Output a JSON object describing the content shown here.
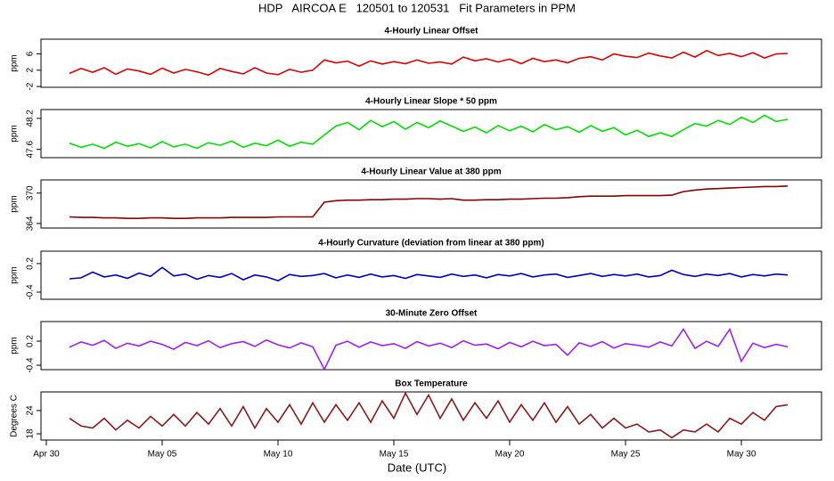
{
  "chart_data": {
    "type": "line",
    "title": "HDP   AIRCOA E   120501 to 120531   Fit Parameters in PPM",
    "xlabel": "Date (UTC)",
    "xlim": [
      -0.23,
      33.46
    ],
    "xticks": [
      {
        "value": 0,
        "label": "Apr 30"
      },
      {
        "value": 5,
        "label": "May 05"
      },
      {
        "value": 10,
        "label": "May 10"
      },
      {
        "value": 15,
        "label": "May 15"
      },
      {
        "value": 20,
        "label": "May 20"
      },
      {
        "value": 25,
        "label": "May 25"
      },
      {
        "value": 30,
        "label": "May 30"
      }
    ],
    "x": [
      1,
      1.5,
      2,
      2.5,
      3,
      3.5,
      4,
      4.5,
      5,
      5.5,
      6,
      6.5,
      7,
      7.5,
      8,
      8.5,
      9,
      9.5,
      10,
      10.5,
      11,
      11.5,
      12,
      12.5,
      13,
      13.5,
      14,
      14.5,
      15,
      15.5,
      16,
      16.5,
      17,
      17.5,
      18,
      18.5,
      19,
      19.5,
      20,
      20.5,
      21,
      21.5,
      22,
      22.5,
      23,
      23.5,
      24,
      24.5,
      25,
      25.5,
      26,
      26.5,
      27,
      27.5,
      28,
      28.5,
      29,
      29.5,
      30,
      30.5,
      31,
      31.5,
      32
    ],
    "panels": [
      {
        "title": "4-Hourly Linear Offset",
        "ylabel": "ppm",
        "color": "#e00000",
        "ylim": [
          -2.2,
          9.6
        ],
        "yticks": [
          -2,
          2,
          6
        ],
        "values": [
          1.2,
          2.4,
          1.5,
          2.6,
          1.0,
          2.3,
          1.8,
          1.0,
          2.5,
          1.3,
          2.2,
          1.6,
          0.8,
          2.4,
          1.7,
          1.1,
          2.6,
          1.3,
          0.9,
          2.2,
          1.5,
          2.0,
          4.5,
          3.8,
          4.2,
          3.0,
          4.3,
          3.5,
          4.1,
          3.6,
          4.5,
          3.7,
          4.0,
          3.5,
          5.2,
          4.3,
          4.8,
          4.0,
          4.7,
          3.6,
          4.9,
          4.1,
          4.5,
          3.8,
          4.9,
          5.3,
          4.5,
          6.0,
          5.4,
          5.1,
          6.2,
          5.5,
          5.0,
          6.4,
          5.2,
          6.8,
          5.6,
          6.1,
          5.3,
          6.3,
          5.0,
          6.0,
          6.1
        ]
      },
      {
        "title": "4-Hourly Linear Slope * 50 ppm",
        "ylabel": "ppm",
        "color": "#00e000",
        "ylim": [
          47.44,
          48.37
        ],
        "yticks": [
          47.6,
          48.2
        ],
        "values": [
          47.72,
          47.64,
          47.7,
          47.62,
          47.74,
          47.66,
          47.71,
          47.63,
          47.75,
          47.65,
          47.7,
          47.62,
          47.73,
          47.68,
          47.76,
          47.64,
          47.72,
          47.67,
          47.78,
          47.66,
          47.74,
          47.7,
          47.88,
          48.05,
          48.12,
          47.98,
          48.16,
          48.04,
          48.14,
          47.99,
          48.12,
          48.02,
          48.15,
          48.05,
          47.95,
          48.03,
          47.92,
          48.06,
          47.96,
          48.05,
          47.94,
          48.08,
          47.98,
          48.04,
          47.93,
          48.06,
          47.95,
          48.02,
          47.88,
          47.97,
          47.85,
          47.92,
          47.85,
          47.98,
          48.1,
          48.05,
          48.16,
          48.08,
          48.22,
          48.12,
          48.26,
          48.14,
          48.18
        ]
      },
      {
        "title": "4-Hourly Linear Value at 380 ppm",
        "ylabel": "ppm",
        "color": "#8b0000",
        "ylim": [
          363.1,
          372.6
        ],
        "yticks": [
          364,
          370
        ],
        "values": [
          365.3,
          365.2,
          365.2,
          365.1,
          365.1,
          365.0,
          365.0,
          365.1,
          365.1,
          365.0,
          365.0,
          365.1,
          365.1,
          365.1,
          365.2,
          365.2,
          365.2,
          365.2,
          365.3,
          365.3,
          365.3,
          365.3,
          368.2,
          368.5,
          368.6,
          368.6,
          368.7,
          368.7,
          368.8,
          368.8,
          368.9,
          368.9,
          368.8,
          368.9,
          368.6,
          368.6,
          368.7,
          368.7,
          368.8,
          368.8,
          368.9,
          369.0,
          369.0,
          369.1,
          369.3,
          369.4,
          369.4,
          369.4,
          369.5,
          369.5,
          369.5,
          369.5,
          369.6,
          370.3,
          370.6,
          370.8,
          370.9,
          371.0,
          371.1,
          371.2,
          371.3,
          371.3,
          371.4
        ]
      },
      {
        "title": "4-Hourly Curvature (deviation from linear at 380 ppm)",
        "ylabel": "ppm",
        "color": "#0000c0",
        "ylim": [
          -0.55,
          0.46
        ],
        "yticks": [
          -0.4,
          0.2
        ],
        "values": [
          -0.12,
          -0.1,
          0.02,
          -0.08,
          -0.04,
          -0.11,
          0.0,
          -0.07,
          0.12,
          -0.06,
          -0.02,
          -0.13,
          -0.05,
          -0.09,
          -0.01,
          -0.14,
          -0.04,
          -0.08,
          -0.16,
          -0.03,
          -0.07,
          -0.05,
          -0.01,
          -0.1,
          -0.04,
          -0.09,
          -0.02,
          -0.08,
          -0.05,
          -0.11,
          -0.03,
          -0.06,
          -0.09,
          -0.02,
          -0.07,
          -0.04,
          -0.1,
          -0.03,
          -0.06,
          -0.01,
          -0.08,
          -0.04,
          -0.02,
          -0.09,
          -0.05,
          -0.01,
          -0.07,
          -0.03,
          -0.06,
          -0.02,
          -0.08,
          -0.05,
          0.06,
          -0.03,
          -0.07,
          -0.02,
          -0.05,
          -0.01,
          -0.08,
          -0.03,
          -0.06,
          -0.02,
          -0.04
        ]
      },
      {
        "title": "30-Minute Zero Offset",
        "ylabel": "ppm",
        "color": "#a020f0",
        "ylim": [
          -0.51,
          0.69
        ],
        "yticks": [
          -0.4,
          0.2
        ],
        "values": [
          0.05,
          0.18,
          0.1,
          0.22,
          0.02,
          0.15,
          0.08,
          0.2,
          0.12,
          0.0,
          0.17,
          0.09,
          0.21,
          0.04,
          0.14,
          0.19,
          0.07,
          0.23,
          0.11,
          0.03,
          0.16,
          0.06,
          -0.5,
          0.1,
          0.2,
          0.05,
          0.18,
          0.09,
          0.14,
          0.02,
          0.19,
          0.08,
          0.15,
          0.04,
          0.21,
          0.1,
          0.13,
          0.01,
          0.17,
          0.06,
          0.2,
          0.09,
          0.12,
          -0.15,
          0.16,
          0.07,
          0.19,
          0.03,
          0.14,
          0.1,
          0.05,
          0.18,
          0.08,
          0.5,
          0.02,
          0.2,
          0.07,
          0.5,
          -0.3,
          0.15,
          0.04,
          0.12,
          0.06
        ]
      },
      {
        "title": "Box Temperature",
        "ylabel": "Degrees C",
        "color": "#8b1a1a",
        "ylim": [
          16.4,
          28.8
        ],
        "yticks": [
          18,
          24
        ],
        "values": [
          22,
          20,
          19.5,
          22,
          19,
          21.5,
          19.5,
          22.5,
          20,
          23,
          20,
          23.5,
          20.5,
          24.5,
          20,
          25,
          19.5,
          24.5,
          21,
          25.5,
          20.5,
          26,
          21,
          25.5,
          21.5,
          26,
          21,
          26.5,
          22,
          28.5,
          23,
          28,
          22,
          27,
          21.5,
          26,
          22,
          26.5,
          21,
          25.5,
          21.5,
          26,
          21,
          25,
          20.5,
          23,
          19.5,
          22,
          19.5,
          20.5,
          18.5,
          19,
          17,
          19,
          18.5,
          20.5,
          18.5,
          22,
          20.5,
          23.5,
          21.5,
          25,
          25.5
        ]
      }
    ]
  }
}
